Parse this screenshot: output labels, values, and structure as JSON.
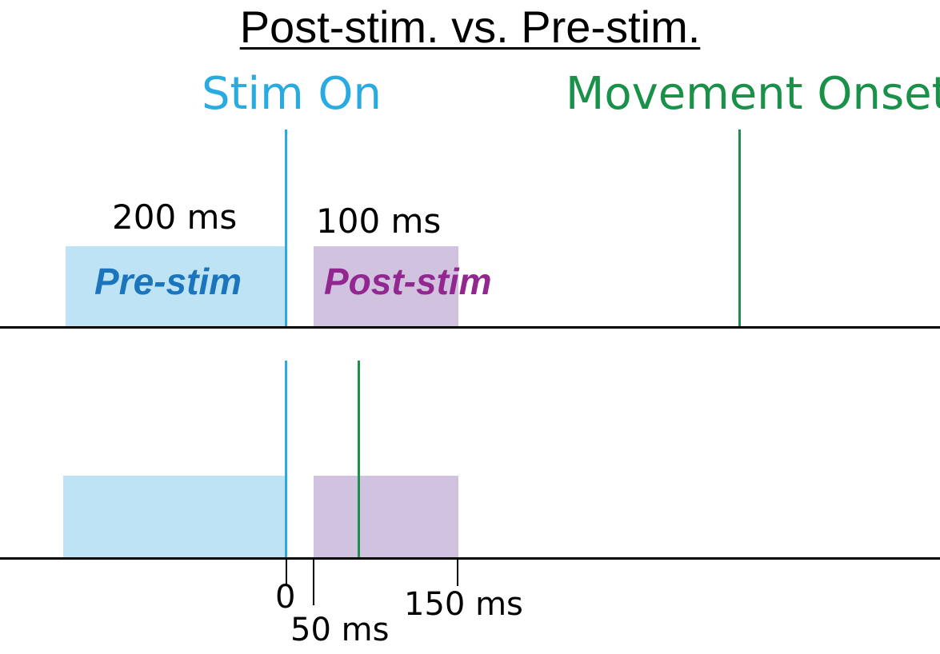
{
  "title": "Post-stim. vs. Pre-stim.",
  "events": {
    "stim_on": {
      "label": "Stim On",
      "color": "#29abe2"
    },
    "movement_onset": {
      "label": "Movement Onset",
      "color": "#1a9148"
    }
  },
  "windows": {
    "pre_stim": {
      "label": "Pre-stim",
      "duration_label": "200 ms",
      "fill": "#bde3f4",
      "text_color": "#1b75bc"
    },
    "post_stim": {
      "label": "Post-stim",
      "duration_label": "100 ms",
      "fill": "#d1c2e0",
      "text_color": "#92278f"
    }
  },
  "time_axis": {
    "ticks": [
      {
        "label": "0"
      },
      {
        "label": "50 ms"
      },
      {
        "label": "150 ms"
      }
    ]
  }
}
